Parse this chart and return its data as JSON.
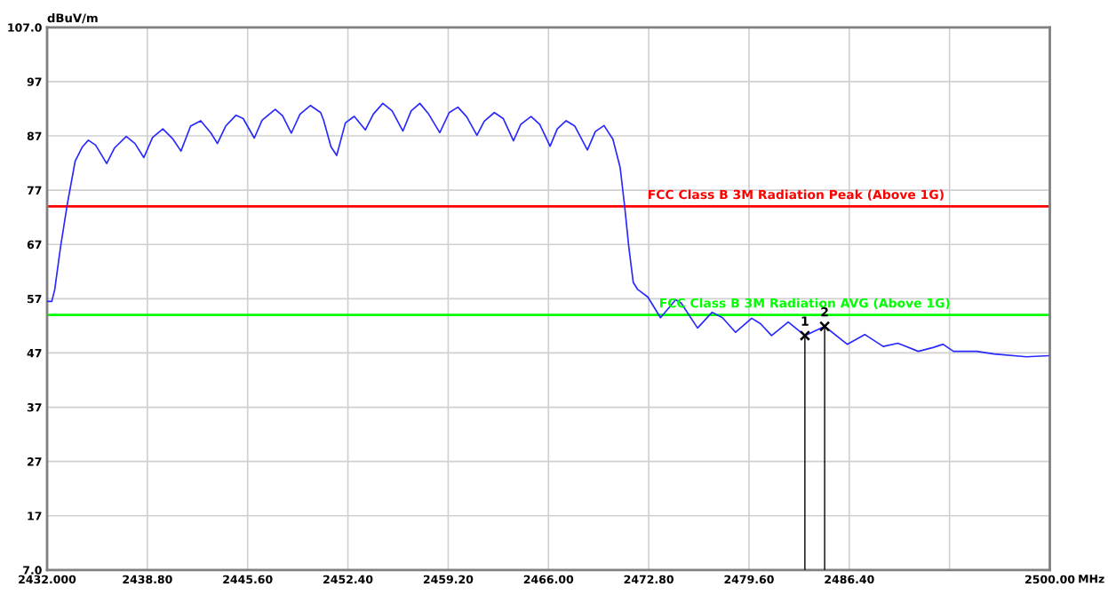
{
  "chart_data": {
    "type": "line",
    "xlabel": "MHz",
    "ylabel": "dBuV/m",
    "x": [
      2432.0,
      2432.32,
      2432.52,
      2432.91,
      2433.37,
      2433.9,
      2434.4,
      2434.8,
      2435.29,
      2436.04,
      2436.58,
      2437.37,
      2437.96,
      2438.56,
      2439.15,
      2439.85,
      2440.54,
      2441.08,
      2441.73,
      2442.42,
      2443.12,
      2443.55,
      2444.11,
      2444.8,
      2445.3,
      2446.05,
      2446.58,
      2447.47,
      2447.97,
      2448.56,
      2449.15,
      2449.85,
      2450.55,
      2450.75,
      2451.25,
      2451.64,
      2452.23,
      2452.83,
      2453.58,
      2454.12,
      2454.77,
      2455.4,
      2456.13,
      2456.69,
      2457.28,
      2457.88,
      2458.63,
      2459.27,
      2459.86,
      2460.46,
      2461.15,
      2461.64,
      2462.33,
      2462.93,
      2463.63,
      2464.12,
      2464.82,
      2465.41,
      2466.11,
      2466.6,
      2467.2,
      2467.79,
      2468.64,
      2469.18,
      2469.77,
      2470.37,
      2470.86,
      2471.16,
      2471.45,
      2471.75,
      2472.05,
      2472.74,
      2473.6,
      2474.63,
      2475.0,
      2476.11,
      2477.1,
      2477.8,
      2478.69,
      2479.78,
      2480.38,
      2481.13,
      2482.26,
      2483.39,
      2484.73,
      2486.26,
      2487.45,
      2488.7,
      2489.69,
      2491.08,
      2492.07,
      2492.76,
      2493.46,
      2495.04,
      2496.23,
      2498.41,
      2499.9
    ],
    "series": [
      {
        "color": "#2828ff",
        "values": [
          56.5,
          56.5,
          58.7,
          66.5,
          74.4,
          82.3,
          85.0,
          86.2,
          85.3,
          81.9,
          84.8,
          86.9,
          85.6,
          83.0,
          86.7,
          88.3,
          86.4,
          84.2,
          88.8,
          89.8,
          87.5,
          85.6,
          88.8,
          90.8,
          90.2,
          86.6,
          89.9,
          91.9,
          90.7,
          87.5,
          91.0,
          92.6,
          91.3,
          89.9,
          85.0,
          83.4,
          89.4,
          90.6,
          88.1,
          91.0,
          93.0,
          91.6,
          87.9,
          91.6,
          93.0,
          91.0,
          87.6,
          91.3,
          92.3,
          90.5,
          87.1,
          89.7,
          91.3,
          90.2,
          86.1,
          89.1,
          90.6,
          89.1,
          85.1,
          88.3,
          89.8,
          88.8,
          84.4,
          87.8,
          88.9,
          86.4,
          81.2,
          74.2,
          66.5,
          60.0,
          58.7,
          57.3,
          53.5,
          56.8,
          56.2,
          51.6,
          54.5,
          53.5,
          50.8,
          53.4,
          52.4,
          50.2,
          52.7,
          50.2,
          51.9,
          48.6,
          50.4,
          48.2,
          48.8,
          47.3,
          48.0,
          48.6,
          47.3,
          47.3,
          46.8,
          46.3,
          46.5
        ]
      }
    ],
    "xlim": [
      2432.0,
      2500.0
    ],
    "xticks": [
      {
        "value": 2432.0,
        "label": "2432.000"
      },
      {
        "value": 2438.8,
        "label": "2438.80"
      },
      {
        "value": 2445.6,
        "label": "2445.60"
      },
      {
        "value": 2452.4,
        "label": "2452.40"
      },
      {
        "value": 2459.2,
        "label": "2459.20"
      },
      {
        "value": 2466.0,
        "label": "2466.00"
      },
      {
        "value": 2472.8,
        "label": "2472.80"
      },
      {
        "value": 2479.6,
        "label": "2479.60"
      },
      {
        "value": 2486.4,
        "label": "2486.40"
      },
      {
        "value": 2493.2,
        "label": null
      },
      {
        "value": 2500.0,
        "label": "2500.00"
      }
    ],
    "ylim": [
      7.0,
      107.0
    ],
    "yticks": [
      {
        "value": 7.0,
        "label": "7.0"
      },
      17,
      27,
      37,
      47,
      57,
      67,
      77,
      87,
      97,
      {
        "value": 107.0,
        "label": "107.0"
      }
    ],
    "ref_lines": [
      {
        "axis": "y",
        "value": 74,
        "label": "FCC Class B 3M Radiation Peak (Above 1G)",
        "color": "#ff0000"
      },
      {
        "axis": "y",
        "value": 54,
        "label": "FCC Class B 3M Radiation AVG (Above 1G)",
        "color": "#00ff00"
      }
    ],
    "annotations": [
      {
        "text": "1",
        "x": 2483.39,
        "y": 50.2
      },
      {
        "text": "2",
        "x": 2484.73,
        "y": 51.9
      }
    ],
    "grid": true,
    "marker": "none",
    "line_style": "solid"
  }
}
